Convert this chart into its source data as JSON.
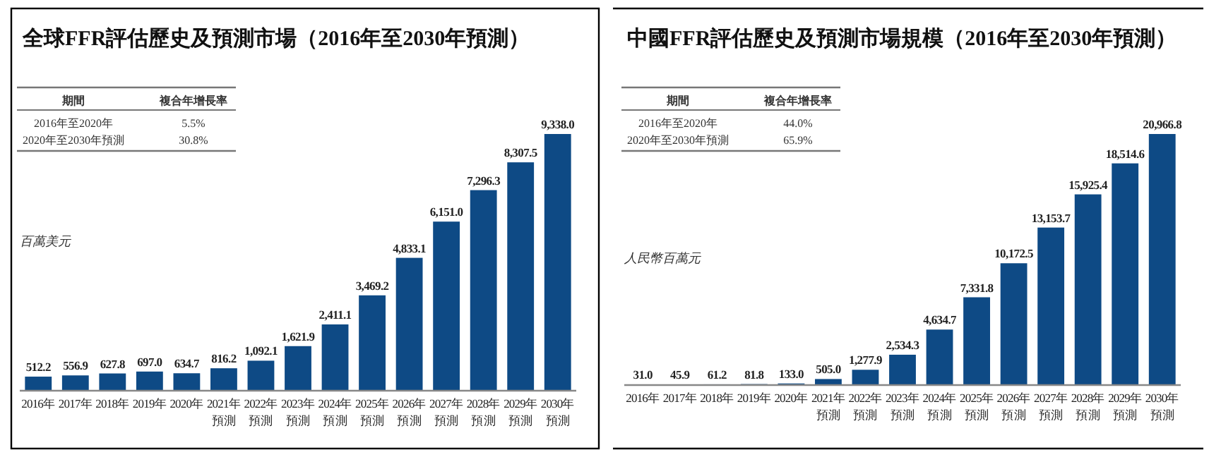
{
  "chart_data": [
    {
      "type": "bar",
      "title": "全球FFR評估歷史及預測市場（2016年至2030年預測）",
      "ylabel": "百萬美元",
      "annotations": [
        "期間",
        "複合年增長率",
        "2016年至2020年",
        "5.5%",
        "2020年至2030年預測",
        "30.8%"
      ],
      "categories": [
        "2016年",
        "2017年",
        "2018年",
        "2019年",
        "2020年",
        "2021年預測",
        "2022年預測",
        "2023年預測",
        "2024年預測",
        "2025年預測",
        "2026年預測",
        "2027年預測",
        "2028年預測",
        "2029年預測",
        "2030年預測"
      ],
      "values": [
        512.2,
        556.9,
        627.8,
        697.0,
        634.7,
        816.2,
        1092.1,
        1621.9,
        2411.1,
        3469.2,
        4833.1,
        6151.0,
        7296.3,
        8307.5,
        9338.0
      ],
      "value_labels": [
        "512.2",
        "556.9",
        "627.8",
        "697.0",
        "634.7",
        "816.2",
        "1,092.1",
        "1,621.9",
        "2,411.1",
        "3,469.2",
        "4,833.1",
        "6,151.0",
        "7,296.3",
        "8,307.5",
        "9,338.0"
      ],
      "color": "#0e4a85"
    },
    {
      "type": "bar",
      "title": "中國FFR評估歷史及預測市場規模（2016年至2030年預測）",
      "ylabel": "人民幣百萬元",
      "annotations": [
        "期間",
        "複合年增長率",
        "2016年至2020年",
        "44.0%",
        "2020年至2030年預測",
        "65.9%"
      ],
      "categories": [
        "2016年",
        "2017年",
        "2018年",
        "2019年",
        "2020年",
        "2021年預測",
        "2022年預測",
        "2023年預測",
        "2024年預測",
        "2025年預測",
        "2026年預測",
        "2027年預測",
        "2028年預測",
        "2029年預測",
        "2030年預測"
      ],
      "values": [
        31.0,
        45.9,
        61.2,
        81.8,
        133.0,
        505.0,
        1277.9,
        2534.3,
        4634.7,
        7331.8,
        10172.5,
        13153.7,
        15925.4,
        18514.6,
        20966.8
      ],
      "value_labels": [
        "31.0",
        "45.9",
        "61.2",
        "81.8",
        "133.0",
        "505.0",
        "1,277.9",
        "2,534.3",
        "4,634.7",
        "7,331.8",
        "10,172.5",
        "13,153.7",
        "15,925.4",
        "18,514.6",
        "20,966.8"
      ],
      "color": "#0e4a85"
    }
  ]
}
